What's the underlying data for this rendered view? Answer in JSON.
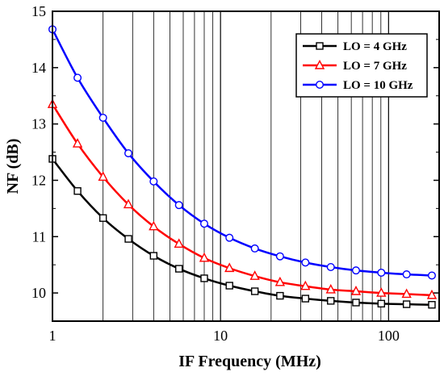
{
  "chart_data": {
    "type": "line",
    "xlabel": "IF Frequency (MHz)",
    "ylabel": "NF (dB)",
    "xscale": "log",
    "xlim": [
      1,
      200
    ],
    "ylim": [
      9.5,
      15
    ],
    "yticks": [
      "10",
      "11",
      "12",
      "13",
      "14",
      "15"
    ],
    "xticks": [
      "1",
      "10",
      "100"
    ],
    "grid": "vertical log minor lines",
    "legend_position": "top-right",
    "x": [
      1,
      1.41,
      2,
      2.83,
      4,
      5.66,
      8,
      11.3,
      16,
      22.6,
      32,
      45.3,
      64,
      90.5,
      128,
      181
    ],
    "series": [
      {
        "name": "LO = 4 GHz",
        "color": "#000000",
        "marker": "square",
        "values": [
          12.38,
          11.81,
          11.33,
          10.96,
          10.66,
          10.43,
          10.26,
          10.13,
          10.03,
          9.95,
          9.9,
          9.86,
          9.83,
          9.81,
          9.8,
          9.79
        ]
      },
      {
        "name": "LO = 7 GHz",
        "color": "#ff0000",
        "marker": "triangle",
        "values": [
          13.35,
          12.65,
          12.06,
          11.57,
          11.18,
          10.87,
          10.62,
          10.44,
          10.3,
          10.19,
          10.12,
          10.06,
          10.03,
          10.0,
          9.98,
          9.96
        ]
      },
      {
        "name": "LO = 10 GHz",
        "color": "#0000ff",
        "marker": "circle",
        "values": [
          14.68,
          13.82,
          13.11,
          12.48,
          11.98,
          11.56,
          11.23,
          10.98,
          10.79,
          10.65,
          10.54,
          10.46,
          10.4,
          10.36,
          10.33,
          10.31
        ]
      }
    ]
  }
}
